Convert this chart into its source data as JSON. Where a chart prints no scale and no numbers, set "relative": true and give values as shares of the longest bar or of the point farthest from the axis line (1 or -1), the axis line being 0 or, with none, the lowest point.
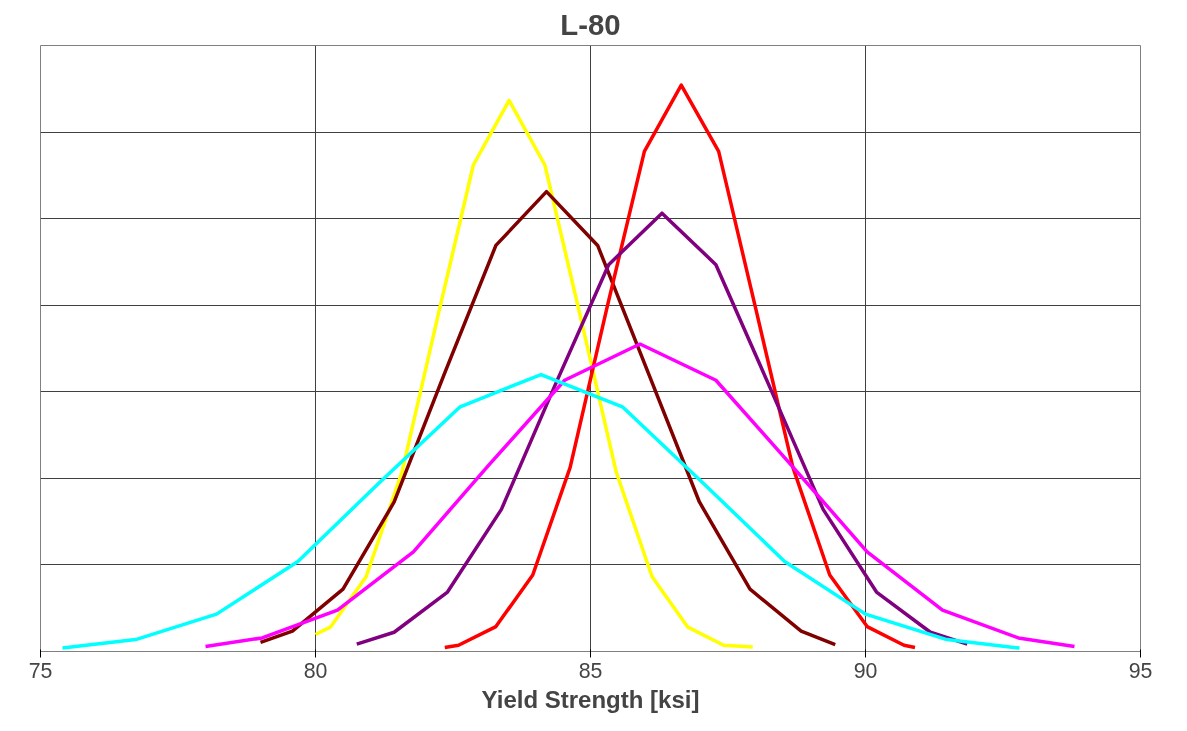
{
  "chart_data": {
    "type": "line",
    "title": "L-80",
    "xlabel": "Yield Strength [ksi]",
    "relative": true,
    "xlim": [
      75,
      95
    ],
    "xticks": [
      75,
      80,
      85,
      90,
      95
    ],
    "grid": true,
    "marker": "none",
    "line_style": "solid",
    "series": [
      {
        "color": "#ffff00",
        "x": [
          80.0,
          80.27,
          80.92,
          81.57,
          82.22,
          82.87,
          83.52,
          84.17,
          84.82,
          85.47,
          86.12,
          86.77,
          87.42,
          87.95
        ],
        "values": [
          0.03,
          0.043,
          0.132,
          0.316,
          0.59,
          0.859,
          0.973,
          0.859,
          0.59,
          0.316,
          0.132,
          0.043,
          0.011,
          0.008
        ]
      },
      {
        "color": "#800000",
        "x": [
          79.0,
          79.58,
          80.5,
          81.43,
          82.35,
          83.28,
          84.2,
          85.13,
          86.05,
          86.98,
          87.9,
          88.83,
          89.45
        ],
        "values": [
          0.016,
          0.036,
          0.11,
          0.264,
          0.492,
          0.717,
          0.812,
          0.717,
          0.492,
          0.264,
          0.11,
          0.036,
          0.012
        ]
      },
      {
        "color": "#ff0000",
        "x": [
          82.35,
          82.6,
          83.28,
          83.95,
          84.63,
          85.3,
          85.98,
          86.65,
          87.33,
          88.0,
          88.68,
          89.35,
          90.03,
          90.7,
          90.9
        ],
        "values": [
          0.007,
          0.011,
          0.044,
          0.135,
          0.325,
          0.607,
          0.883,
          1.0,
          0.883,
          0.607,
          0.325,
          0.135,
          0.044,
          0.011,
          0.007
        ]
      },
      {
        "color": "#800080",
        "x": [
          80.75,
          81.43,
          82.4,
          83.38,
          84.35,
          85.33,
          86.3,
          87.28,
          88.25,
          89.23,
          90.2,
          91.18,
          91.85
        ],
        "values": [
          0.013,
          0.034,
          0.105,
          0.251,
          0.469,
          0.683,
          0.774,
          0.683,
          0.469,
          0.251,
          0.105,
          0.034,
          0.013
        ]
      },
      {
        "color": "#ff00ff",
        "x": [
          78.0,
          79.03,
          80.4,
          81.78,
          83.15,
          84.53,
          85.9,
          87.28,
          88.65,
          90.03,
          91.4,
          92.78,
          93.8
        ],
        "values": [
          0.009,
          0.024,
          0.073,
          0.176,
          0.329,
          0.479,
          0.543,
          0.479,
          0.329,
          0.176,
          0.073,
          0.024,
          0.009
        ]
      },
      {
        "color": "#00ffff",
        "x": [
          75.4,
          76.73,
          78.2,
          79.68,
          81.15,
          82.63,
          84.1,
          85.58,
          87.05,
          88.53,
          90.0,
          91.48,
          92.8
        ],
        "values": [
          0.006,
          0.021,
          0.066,
          0.159,
          0.297,
          0.432,
          0.489,
          0.432,
          0.297,
          0.159,
          0.066,
          0.021,
          0.006
        ]
      }
    ]
  }
}
